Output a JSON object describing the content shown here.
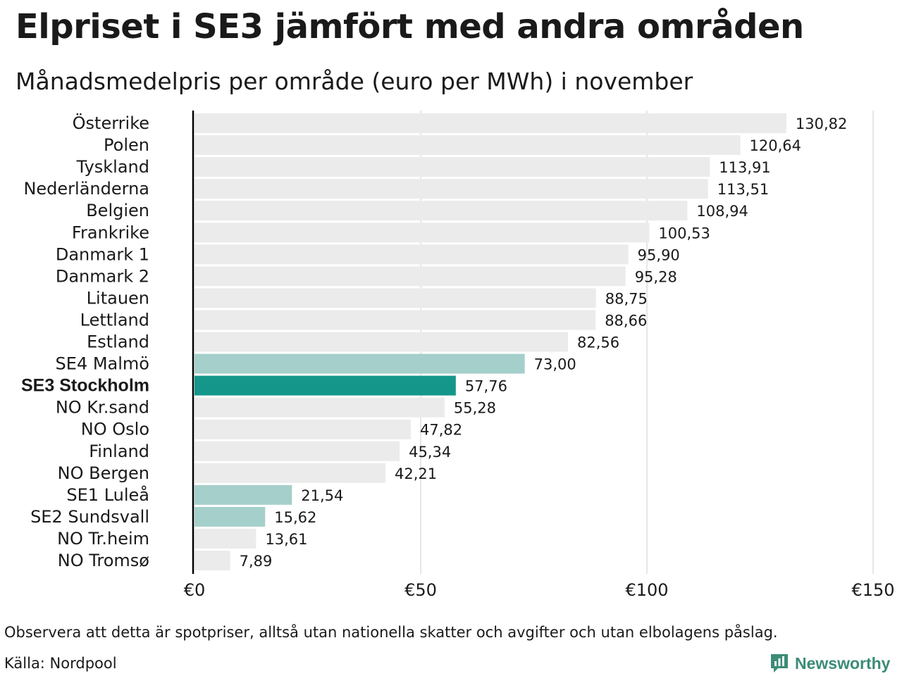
{
  "title": "Elpriset i SE3 jämfört med andra områden",
  "subtitle": "Månadsmedelpris per område (euro per MWh) i november",
  "footer": {
    "note": "Observera att detta är spotpriser, alltså utan nationella skatter och avgifter och utan elbolagens påslag.",
    "source": "Källa: Nordpool",
    "logo_text": "Newsworthy"
  },
  "colors": {
    "default_bar": "#ebebeb",
    "swedish_bar": "#a5cfca",
    "highlight_bar": "#14978a",
    "gridline": "#cccccc",
    "axis": "#000000",
    "logo": "#3b8c76"
  },
  "chart_data": {
    "type": "bar",
    "orientation": "horizontal",
    "title": "Elpriset i SE3 jämfört med andra områden",
    "subtitle": "Månadsmedelpris per område (euro per MWh) i november",
    "xlim": [
      0,
      150
    ],
    "xticks": [
      0,
      50,
      100,
      150
    ],
    "xtick_labels": [
      "€0",
      "€50",
      "€100",
      "€150"
    ],
    "grid": "vertical",
    "categories": [
      "Österrike",
      "Polen",
      "Tyskland",
      "Nederländerna",
      "Belgien",
      "Frankrike",
      "Danmark  1",
      "Danmark  2",
      "Litauen",
      "Lettland",
      "Estland",
      "SE4  Malmö",
      "SE3 Stockholm",
      "NO Kr.sand",
      "NO Oslo",
      "Finland",
      "NO Bergen",
      "SE1  Luleå",
      "SE2  Sundsvall",
      "NO Tr.heim",
      "NO Tromsø"
    ],
    "values": [
      130.82,
      120.64,
      113.91,
      113.51,
      108.94,
      100.53,
      95.9,
      95.28,
      88.75,
      88.66,
      82.56,
      73.0,
      57.76,
      55.28,
      47.82,
      45.34,
      42.21,
      21.54,
      15.62,
      13.61,
      7.89
    ],
    "value_labels": [
      "130,82",
      "120,64",
      "113,91",
      "113,51",
      "108,94",
      "100,53",
      "95,90",
      "95,28",
      "88,75",
      "88,66",
      "82,56",
      "73,00",
      "57,76",
      "55,28",
      "47,82",
      "45,34",
      "42,21",
      "21,54",
      "15,62",
      "13,61",
      "7,89"
    ],
    "bar_colors": [
      "default",
      "default",
      "default",
      "default",
      "default",
      "default",
      "default",
      "default",
      "default",
      "default",
      "default",
      "swedish",
      "highlight",
      "default",
      "default",
      "default",
      "default",
      "swedish",
      "swedish",
      "default",
      "default"
    ],
    "highlight": "SE3 Stockholm"
  }
}
